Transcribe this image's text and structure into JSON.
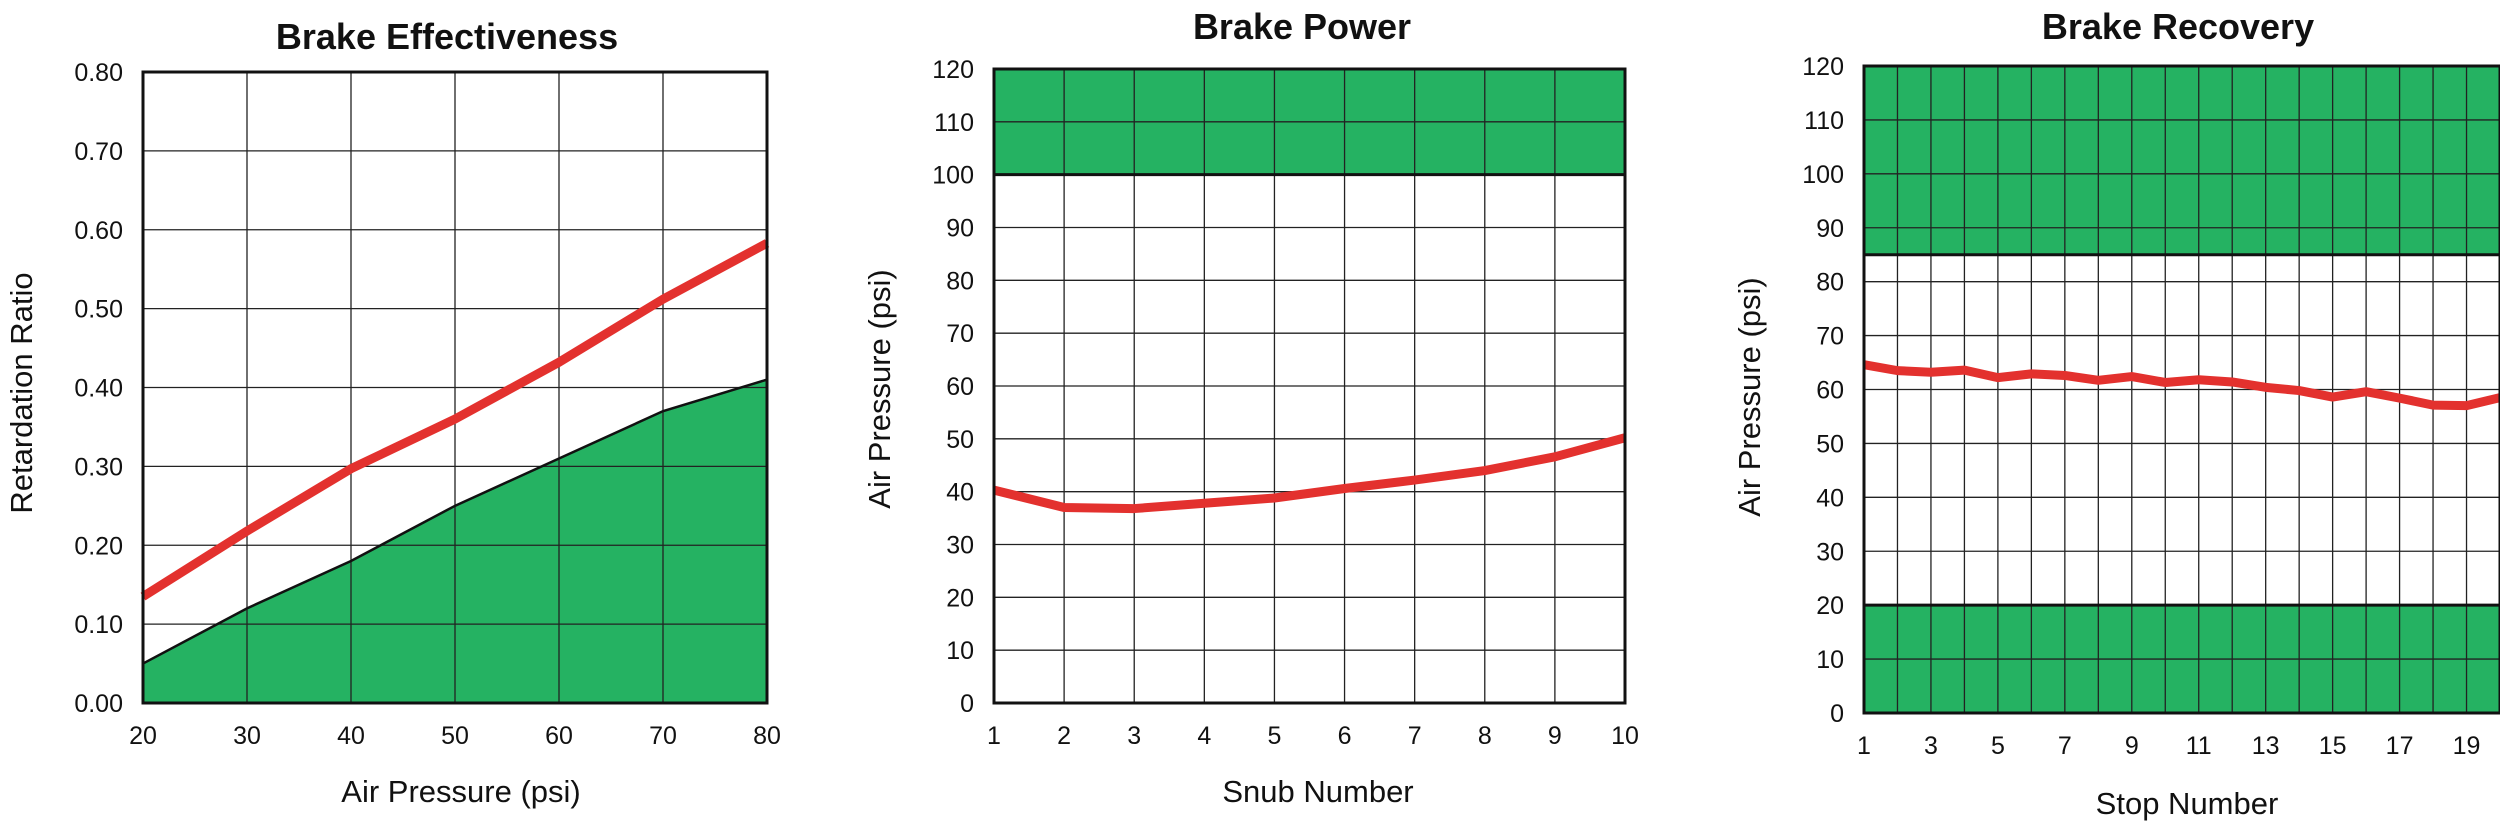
{
  "colors": {
    "zone": "#25b262",
    "curve": "#e3312e",
    "grid": "#222222",
    "text": "#111111"
  },
  "chart_data": [
    {
      "type": "area",
      "title": "Brake Effectiveness",
      "xlabel": "Air Pressure (psi)",
      "ylabel": "Retardation Ratio",
      "xlim": [
        20,
        80
      ],
      "ylim": [
        0,
        0.8
      ],
      "xticks": [
        20,
        30,
        40,
        50,
        60,
        70,
        80
      ],
      "yticks": [
        0,
        0.1,
        0.2,
        0.3,
        0.4,
        0.5,
        0.6,
        0.7,
        0.8
      ],
      "ytick_labels": [
        "0.00",
        "0.10",
        "0.20",
        "0.30",
        "0.40",
        "0.50",
        "0.60",
        "0.70",
        "0.80"
      ],
      "zone_lower_limit": {
        "x": [
          20,
          30,
          40,
          50,
          60,
          70,
          80
        ],
        "y": [
          0.05,
          0.12,
          0.18,
          0.25,
          0.31,
          0.37,
          0.41
        ]
      },
      "series": [
        {
          "x": [
            20,
            30,
            40,
            50,
            60,
            70,
            80
          ],
          "y": [
            0.135,
            0.218,
            0.297,
            0.36,
            0.432,
            0.512,
            0.583
          ]
        }
      ]
    },
    {
      "type": "line",
      "title": "Brake Power",
      "xlabel": "Snub Number",
      "ylabel": "Air Pressure (psi)",
      "xlim": [
        1,
        10
      ],
      "ylim": [
        0,
        120
      ],
      "xticks": [
        1,
        2,
        3,
        4,
        5,
        6,
        7,
        8,
        9,
        10
      ],
      "yticks": [
        0,
        10,
        20,
        30,
        40,
        50,
        60,
        70,
        80,
        90,
        100,
        110,
        120
      ],
      "zones": [
        {
          "from": 100,
          "to": 120
        }
      ],
      "series": [
        {
          "x": [
            1,
            2,
            3,
            4,
            5,
            6,
            7,
            8,
            9,
            10
          ],
          "y": [
            40.3,
            37,
            36.8,
            37.8,
            38.8,
            40.6,
            42.2,
            44,
            46.6,
            50.2
          ]
        }
      ]
    },
    {
      "type": "line",
      "title": "Brake Recovery",
      "xlabel": "Stop Number",
      "ylabel": "Air Pressure (psi)",
      "xlim": [
        1,
        20
      ],
      "ylim": [
        0,
        120
      ],
      "xticks": [
        1,
        3,
        5,
        7,
        9,
        11,
        13,
        15,
        17,
        19
      ],
      "yticks": [
        0,
        10,
        20,
        30,
        40,
        50,
        60,
        70,
        80,
        90,
        100,
        110,
        120
      ],
      "zones": [
        {
          "from": 0,
          "to": 20
        },
        {
          "from": 85,
          "to": 120
        }
      ],
      "series": [
        {
          "x": [
            1,
            2,
            3,
            4,
            5,
            6,
            7,
            8,
            9,
            10,
            11,
            12,
            13,
            14,
            15,
            16,
            17,
            18,
            19,
            20
          ],
          "y": [
            64.6,
            63.5,
            63.2,
            63.6,
            62.2,
            62.9,
            62.6,
            61.7,
            62.4,
            61.3,
            61.8,
            61.4,
            60.4,
            59.8,
            58.6,
            59.6,
            58.4,
            57.1,
            57,
            58.5
          ]
        }
      ]
    }
  ]
}
